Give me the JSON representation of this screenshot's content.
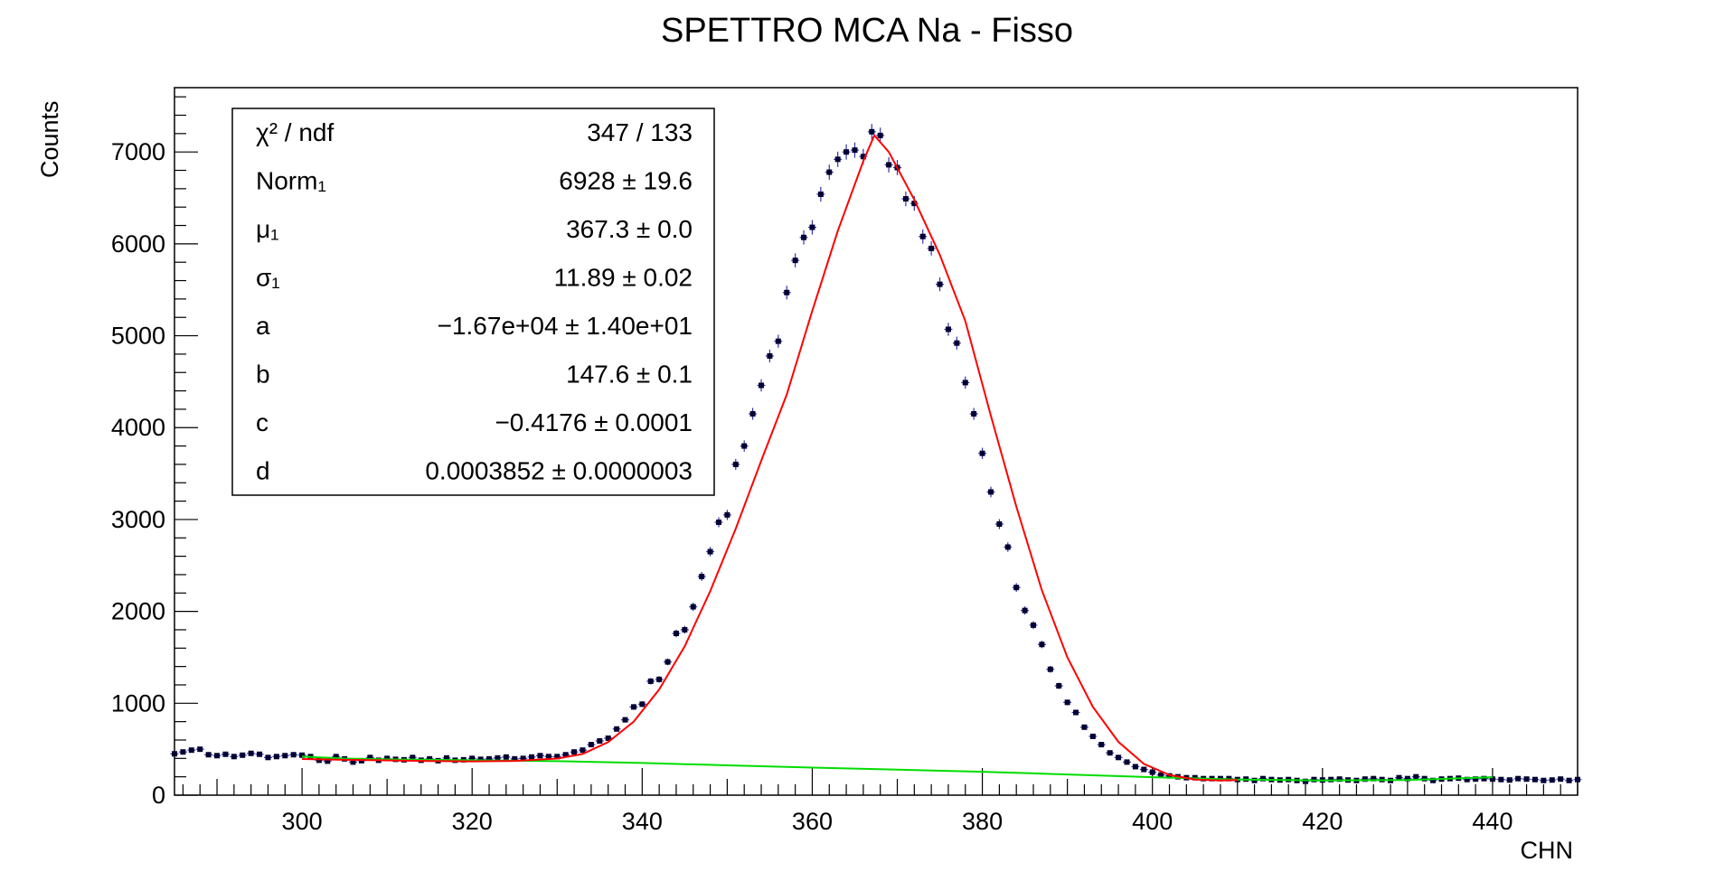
{
  "chart_data": {
    "type": "scatter",
    "title": "SPETTRO MCA Na - Fisso",
    "xlabel": "CHN",
    "ylabel": "Counts",
    "xlim": [
      285,
      450
    ],
    "ylim": [
      0,
      7700
    ],
    "xticks": [
      300,
      320,
      340,
      360,
      380,
      400,
      420,
      440
    ],
    "yticks": [
      0,
      1000,
      2000,
      3000,
      4000,
      5000,
      6000,
      7000
    ],
    "grid": false,
    "legend": "none",
    "stats_box": {
      "placement": "top-left",
      "rows": [
        {
          "name": "χ² / ndf",
          "value": "347 / 133"
        },
        {
          "name": "Norm₁",
          "value": "6928 ± 19.6"
        },
        {
          "name": "μ₁",
          "value": "367.3 ± 0.0"
        },
        {
          "name": "σ₁",
          "value": "11.89 ± 0.02"
        },
        {
          "name": "a",
          "value": "−1.67e+04 ± 1.40e+01"
        },
        {
          "name": "b",
          "value": "147.6 ± 0.1"
        },
        {
          "name": "c",
          "value": "−0.4176 ± 0.0001"
        },
        {
          "name": "d",
          "value": "0.0003852 ± 0.0000003"
        }
      ]
    },
    "series": [
      {
        "type": "scatter",
        "color": "#000033",
        "errorbar_color": "#3333aa",
        "x": [
          285,
          286,
          287,
          288,
          289,
          290,
          291,
          292,
          293,
          294,
          295,
          296,
          297,
          298,
          299,
          300,
          301,
          302,
          303,
          304,
          305,
          306,
          307,
          308,
          309,
          310,
          311,
          312,
          313,
          314,
          315,
          316,
          317,
          318,
          319,
          320,
          321,
          322,
          323,
          324,
          325,
          326,
          327,
          328,
          329,
          330,
          331,
          332,
          333,
          334,
          335,
          336,
          337,
          338,
          339,
          340,
          341,
          342,
          343,
          344,
          345,
          346,
          347,
          348,
          349,
          350,
          351,
          352,
          353,
          354,
          355,
          356,
          357,
          358,
          359,
          360,
          361,
          362,
          363,
          364,
          365,
          366,
          367,
          368,
          369,
          370,
          371,
          372,
          373,
          374,
          375,
          376,
          377,
          378,
          379,
          380,
          381,
          382,
          383,
          384,
          385,
          386,
          387,
          388,
          389,
          390,
          391,
          392,
          393,
          394,
          395,
          396,
          397,
          398,
          399,
          400,
          401,
          402,
          403,
          404,
          405,
          406,
          407,
          408,
          409,
          410,
          411,
          412,
          413,
          414,
          415,
          416,
          417,
          418,
          419,
          420,
          421,
          422,
          423,
          424,
          425,
          426,
          427,
          428,
          429,
          430,
          431,
          432,
          433,
          434,
          435,
          436,
          437,
          438,
          439,
          440,
          441,
          442,
          443,
          444,
          445,
          446,
          447,
          448,
          449,
          450
        ],
        "y": [
          450,
          470,
          490,
          500,
          440,
          430,
          445,
          420,
          435,
          455,
          445,
          410,
          420,
          430,
          440,
          435,
          420,
          380,
          370,
          420,
          395,
          360,
          375,
          410,
          380,
          400,
          390,
          385,
          410,
          380,
          395,
          375,
          405,
          380,
          385,
          400,
          390,
          395,
          405,
          415,
          395,
          400,
          415,
          430,
          420,
          420,
          440,
          470,
          490,
          550,
          590,
          620,
          720,
          820,
          960,
          990,
          1240,
          1260,
          1450,
          1760,
          1800,
          2050,
          2380,
          2650,
          2970,
          3050,
          3600,
          3800,
          4150,
          4460,
          4780,
          4940,
          5470,
          5820,
          6070,
          6180,
          6540,
          6780,
          6920,
          7000,
          7020,
          6950,
          7220,
          7180,
          6860,
          6830,
          6490,
          6440,
          6080,
          5950,
          5560,
          5070,
          4920,
          4490,
          4150,
          3720,
          3300,
          2950,
          2700,
          2260,
          2010,
          1850,
          1640,
          1370,
          1190,
          1010,
          900,
          740,
          640,
          550,
          460,
          410,
          360,
          310,
          280,
          250,
          220,
          210,
          200,
          190,
          190,
          180,
          180,
          180,
          180,
          170,
          175,
          160,
          180,
          170,
          165,
          170,
          160,
          150,
          170,
          165,
          170,
          175,
          165,
          160,
          175,
          180,
          170,
          160,
          190,
          180,
          200,
          180,
          160,
          175,
          180,
          185,
          170,
          175,
          180,
          175,
          170,
          165,
          180,
          175,
          170,
          160,
          165,
          175,
          160,
          170
        ]
      },
      {
        "type": "line",
        "name": "fit",
        "color": "#ff0000",
        "x": [
          300,
          305,
          310,
          315,
          320,
          325,
          330,
          333,
          336,
          339,
          342,
          345,
          348,
          351,
          354,
          357,
          360,
          363,
          366,
          367.3,
          369,
          372,
          375,
          378,
          381,
          384,
          387,
          390,
          393,
          396,
          399,
          402,
          405,
          408,
          410
        ],
        "y": [
          393,
          385,
          378,
          371,
          368,
          372,
          398,
          448,
          578,
          800,
          1150,
          1620,
          2220,
          2900,
          3640,
          4360,
          5270,
          6140,
          6900,
          7180,
          7000,
          6480,
          5880,
          5160,
          4130,
          3140,
          2230,
          1500,
          960,
          580,
          340,
          220,
          170,
          160,
          165
        ]
      },
      {
        "type": "line",
        "name": "background",
        "color": "#00dd00",
        "x": [
          300,
          305,
          310,
          320,
          330,
          340,
          350,
          360,
          370,
          380,
          390,
          400,
          410,
          420,
          430,
          440
        ],
        "y": [
          420,
          398,
          390,
          380,
          370,
          350,
          325,
          300,
          278,
          255,
          225,
          195,
          170,
          160,
          165,
          195
        ]
      }
    ]
  }
}
